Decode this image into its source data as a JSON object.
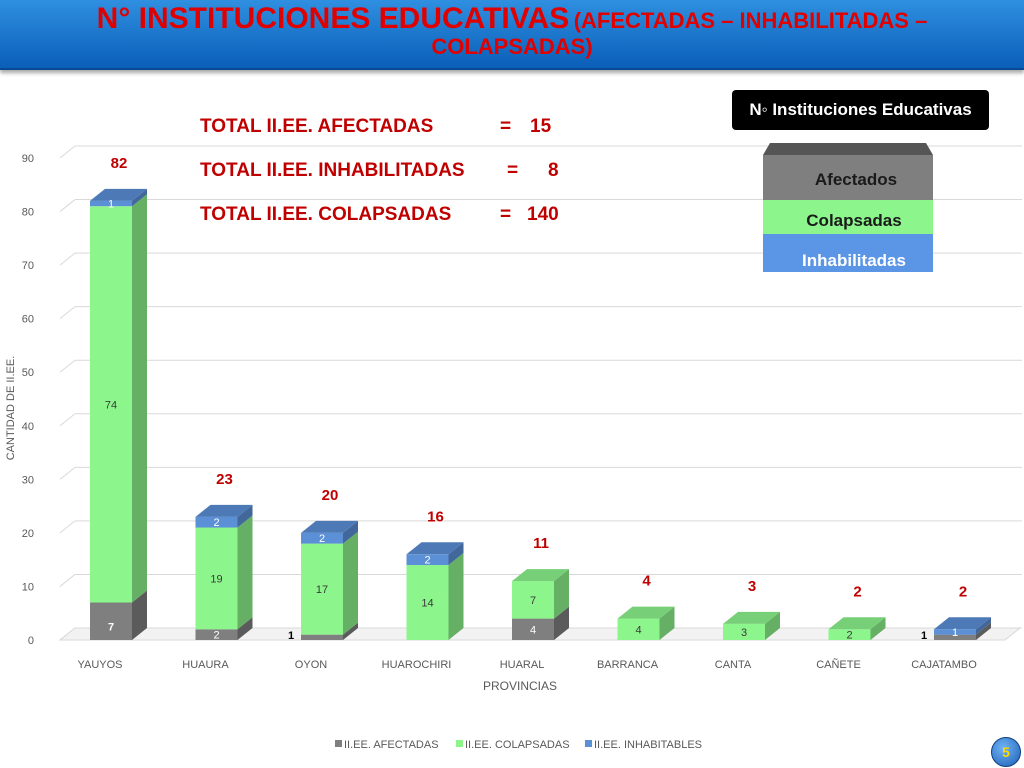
{
  "banner": {
    "title_main": "N° INSTITUCIONES EDUCATIVAS",
    "title_paren_1": "(AFECTADAS – INHABILITADAS –",
    "title_paren_2": "COLAPSADAS)"
  },
  "legend_box": {
    "title": "N◦ Instituciones Educativas",
    "items": [
      "Afectados",
      "Colapsadas",
      "Inhabilitadas"
    ]
  },
  "totals": [
    {
      "label": "TOTAL II.EE. AFECTADAS",
      "eq": "=",
      "value": "15"
    },
    {
      "label": "TOTAL II.EE. INHABILITADAS",
      "eq": "=",
      "value": "8"
    },
    {
      "label": "TOTAL II.EE. COLAPSADAS",
      "eq": "=",
      "value": "140"
    }
  ],
  "page_number": "5",
  "colors": {
    "afectadas": "#7f7f7f",
    "colapsadas": "#8cf58c",
    "inhabitables": "#5b8fd6",
    "total_label": "#c00000"
  },
  "chart_data": {
    "type": "bar",
    "stacked": true,
    "title": "",
    "xlabel": "PROVINCIAS",
    "ylabel": "CANTIDAD DE II.EE.",
    "ylim": [
      0,
      90
    ],
    "yticks": [
      "0",
      "10",
      "20",
      "30",
      "40",
      "50",
      "60",
      "70",
      "80",
      "90"
    ],
    "categories": [
      "YAUYOS",
      "HUAURA",
      "OYON",
      "HUAROCHIRI",
      "HUARAL",
      "BARRANCA",
      "CANTA",
      "CAÑETE",
      "CAJATAMBO"
    ],
    "series": [
      {
        "name": "II.EE. AFECTADAS",
        "values": [
          7,
          2,
          1,
          0,
          4,
          0,
          0,
          0,
          1
        ]
      },
      {
        "name": "II.EE. COLAPSADAS",
        "values": [
          74,
          19,
          17,
          14,
          7,
          4,
          3,
          2,
          0
        ]
      },
      {
        "name": "II.EE. INHABITABLES",
        "values": [
          1,
          2,
          2,
          2,
          0,
          0,
          0,
          0,
          1
        ]
      }
    ],
    "segment_labels": [
      [
        "7",
        "2",
        "1",
        "",
        "4",
        "",
        "",
        "",
        "1"
      ],
      [
        "74",
        "19",
        "17",
        "14",
        "7",
        "4",
        "3",
        "2",
        ""
      ],
      [
        "1",
        "2",
        "2",
        "2",
        "",
        "",
        "",
        "",
        "1"
      ]
    ],
    "totals": [
      "82",
      "23",
      "20",
      "16",
      "11",
      "4",
      "3",
      "2",
      "2"
    ],
    "grid": true,
    "legend": "bottom"
  }
}
